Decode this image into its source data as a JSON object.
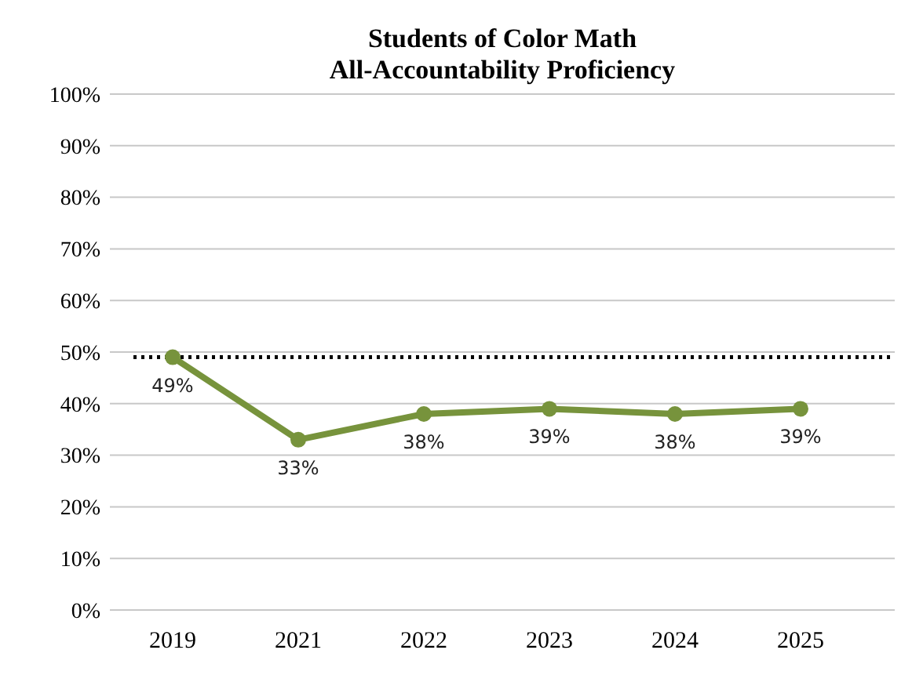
{
  "chart_data": {
    "type": "line",
    "title": "Students of Color Math\nAll-Accountability Proficiency",
    "categories": [
      "2019",
      "2021",
      "2022",
      "2023",
      "2024",
      "2025"
    ],
    "series": [
      {
        "color": "#77933c",
        "values": [
          49,
          33,
          38,
          39,
          38,
          39
        ],
        "value_labels": [
          "49%",
          "33%",
          "38%",
          "39%",
          "38%",
          "39%"
        ]
      }
    ],
    "ylim": [
      0,
      100
    ],
    "yticks": [
      {
        "value": 0,
        "label": "0%"
      },
      {
        "value": 10,
        "label": "10%"
      },
      {
        "value": 20,
        "label": "20%"
      },
      {
        "value": 30,
        "label": "30%"
      },
      {
        "value": 40,
        "label": "40%"
      },
      {
        "value": 50,
        "label": "50%"
      },
      {
        "value": 60,
        "label": "60%"
      },
      {
        "value": 70,
        "label": "70%"
      },
      {
        "value": 80,
        "label": "80%"
      },
      {
        "value": 90,
        "label": "90%"
      },
      {
        "value": 100,
        "label": "100%"
      }
    ],
    "grid": "y",
    "marker": "circle",
    "line_style": "solid",
    "ref_lines": [
      {
        "axis": "y",
        "value": 49,
        "color": "#000000",
        "line_style": "dotted"
      }
    ]
  }
}
